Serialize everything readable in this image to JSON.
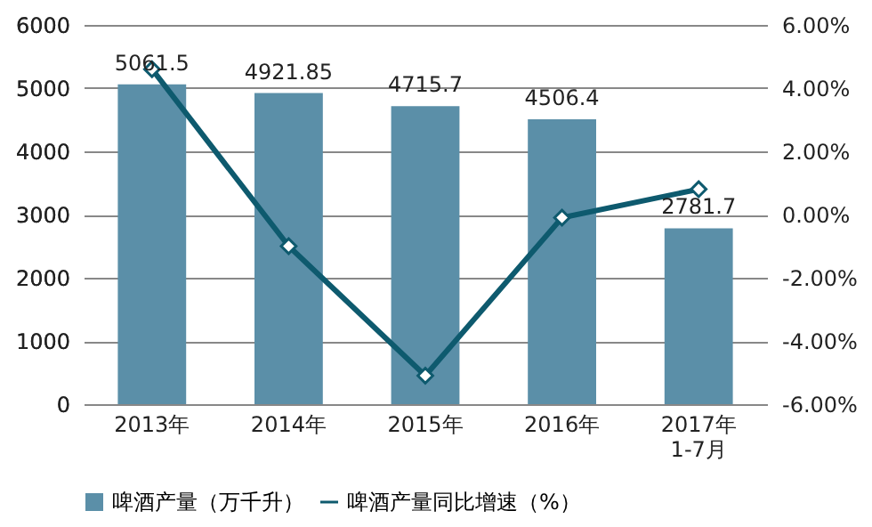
{
  "chart_data": {
    "type": "bar",
    "categories": [
      "2013年",
      "2014年",
      "2015年",
      "2016年",
      "2017年\n1-7月"
    ],
    "series": [
      {
        "name": "啤酒产量（万千升）",
        "color": "#5b8fa8",
        "values": [
          5061.5,
          4921.85,
          4715.7,
          4506.4,
          2781.7
        ],
        "value_labels": [
          "5061.5",
          "4921.85",
          "4715.7",
          "4506.4",
          "2781.7"
        ]
      },
      {
        "name": "啤酒产量同比增速（%）",
        "type": "line",
        "axis": "y2",
        "color": "#0e5a6e",
        "marker": "diamond",
        "values": [
          4.6,
          -1.0,
          -5.1,
          -0.1,
          0.8
        ]
      }
    ],
    "ylim": [
      0,
      6000
    ],
    "yticks": [
      0,
      1000,
      2000,
      3000,
      4000,
      5000,
      6000
    ],
    "y2lim": [
      -6,
      6
    ],
    "y2ticks": [
      {
        "value": -6,
        "label": "-6.00%"
      },
      {
        "value": -4,
        "label": "-4.00%"
      },
      {
        "value": -2,
        "label": "-2.00%"
      },
      {
        "value": 0,
        "label": "0.00%"
      },
      {
        "value": 2,
        "label": "2.00%"
      },
      {
        "value": 4,
        "label": "4.00%"
      },
      {
        "value": 6,
        "label": "6.00%"
      }
    ],
    "grid": "y",
    "legend": "bottom"
  }
}
